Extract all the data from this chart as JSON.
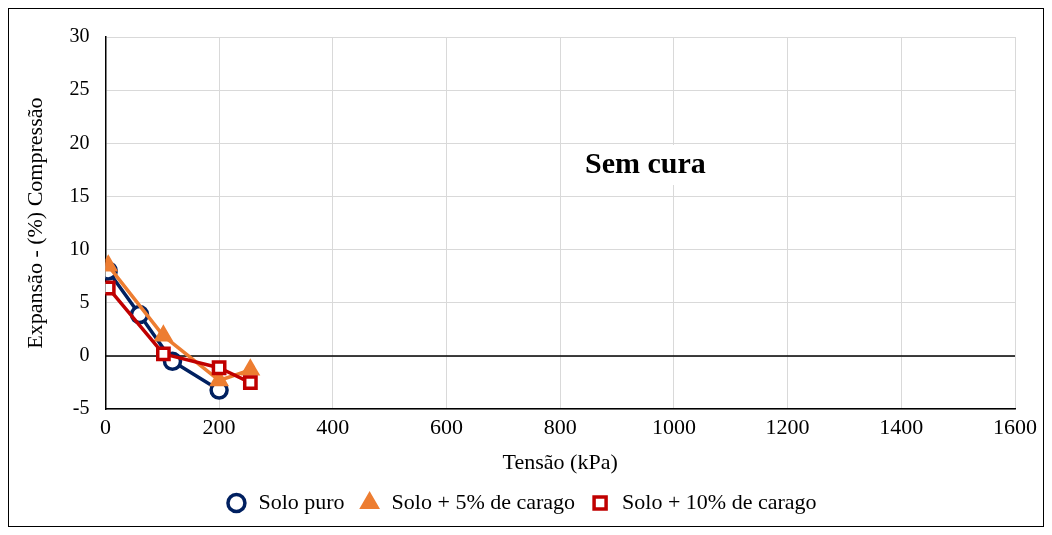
{
  "chart_data": {
    "type": "line",
    "title": "Sem cura",
    "xlabel": "Tensão (kPa)",
    "ylabel": "Expansão - (%) Compressão",
    "xlim": [
      0,
      1600
    ],
    "xticks": [
      0,
      200,
      400,
      600,
      800,
      1000,
      1200,
      1400,
      1600
    ],
    "ylim": [
      -5,
      30
    ],
    "yticks": [
      -5,
      0,
      5,
      10,
      15,
      20,
      25,
      30
    ],
    "grid": true,
    "legend": "bottom",
    "line_style": "solid",
    "series": [
      {
        "name": "Solo puro",
        "color": "#002060",
        "marker": "circle",
        "x": [
          5,
          60,
          118,
          200
        ],
        "values": [
          8,
          3.9,
          -0.5,
          -3.2
        ]
      },
      {
        "name": "Solo + 5% de carago",
        "color": "#ed7d31",
        "marker": "triangle",
        "x": [
          5,
          102,
          200,
          255
        ],
        "values": [
          8.5,
          1.9,
          -2.3,
          -1.3
        ]
      },
      {
        "name": "Solo + 10% de carago",
        "color": "#c00000",
        "marker": "square",
        "x": [
          5,
          102,
          200,
          255
        ],
        "values": [
          6.4,
          0.2,
          -1.1,
          -2.5
        ]
      }
    ]
  }
}
